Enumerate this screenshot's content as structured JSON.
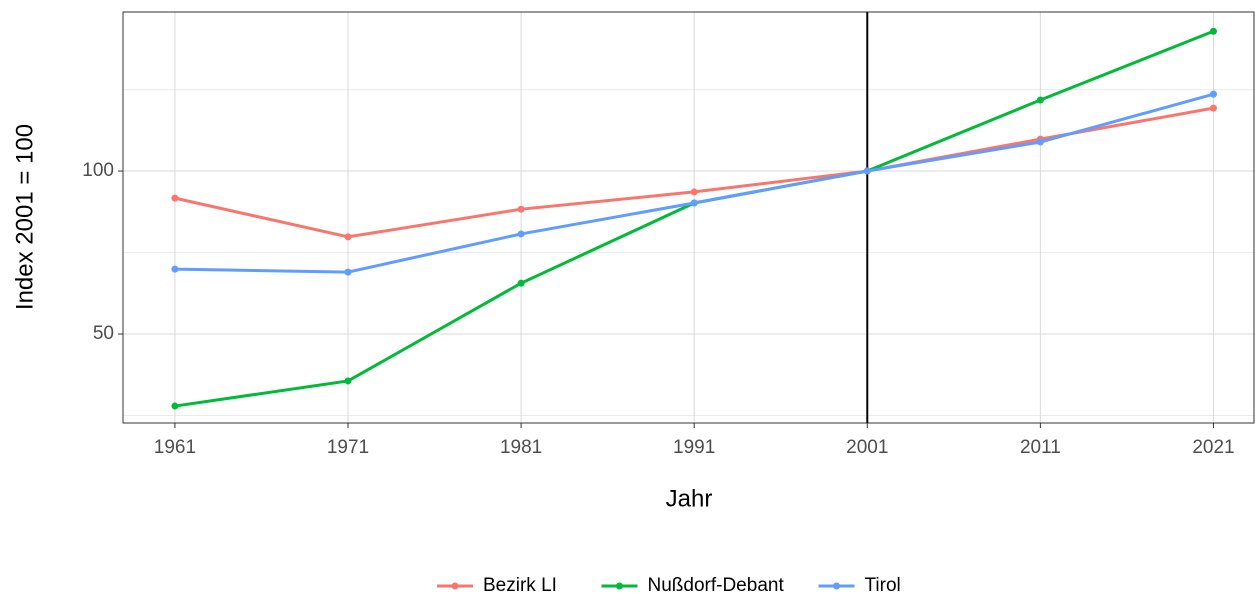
{
  "chart_data": {
    "type": "line",
    "x_label": "Jahr",
    "y_label": "Index 2001 = 100",
    "x": [
      1961,
      1971,
      1981,
      1991,
      2001,
      2011,
      2021
    ],
    "series": [
      {
        "name": "Bezirk LI",
        "color": "#f8766d",
        "values": [
          91.7,
          79.8,
          88.3,
          93.6,
          100,
          109.8,
          119.3
        ]
      },
      {
        "name": "Nußdorf-Debant",
        "color": "#00ba38",
        "values": [
          27.9,
          35.6,
          65.6,
          90.2,
          100,
          121.8,
          142.9
        ]
      },
      {
        "name": "Tirol",
        "color": "#619cff",
        "values": [
          69.9,
          69.0,
          80.7,
          90.2,
          100,
          108.9,
          123.6
        ]
      }
    ],
    "xlim": [
      1958,
      2023.4
    ],
    "xticks": [
      1961,
      1971,
      1981,
      1991,
      2001,
      2011,
      2021
    ],
    "ylim": [
      22.7,
      148.8
    ],
    "yticks": [
      50,
      100
    ],
    "yminor": [
      25,
      75,
      125
    ],
    "vline": 2001,
    "grid": true,
    "legend": "bottom"
  }
}
